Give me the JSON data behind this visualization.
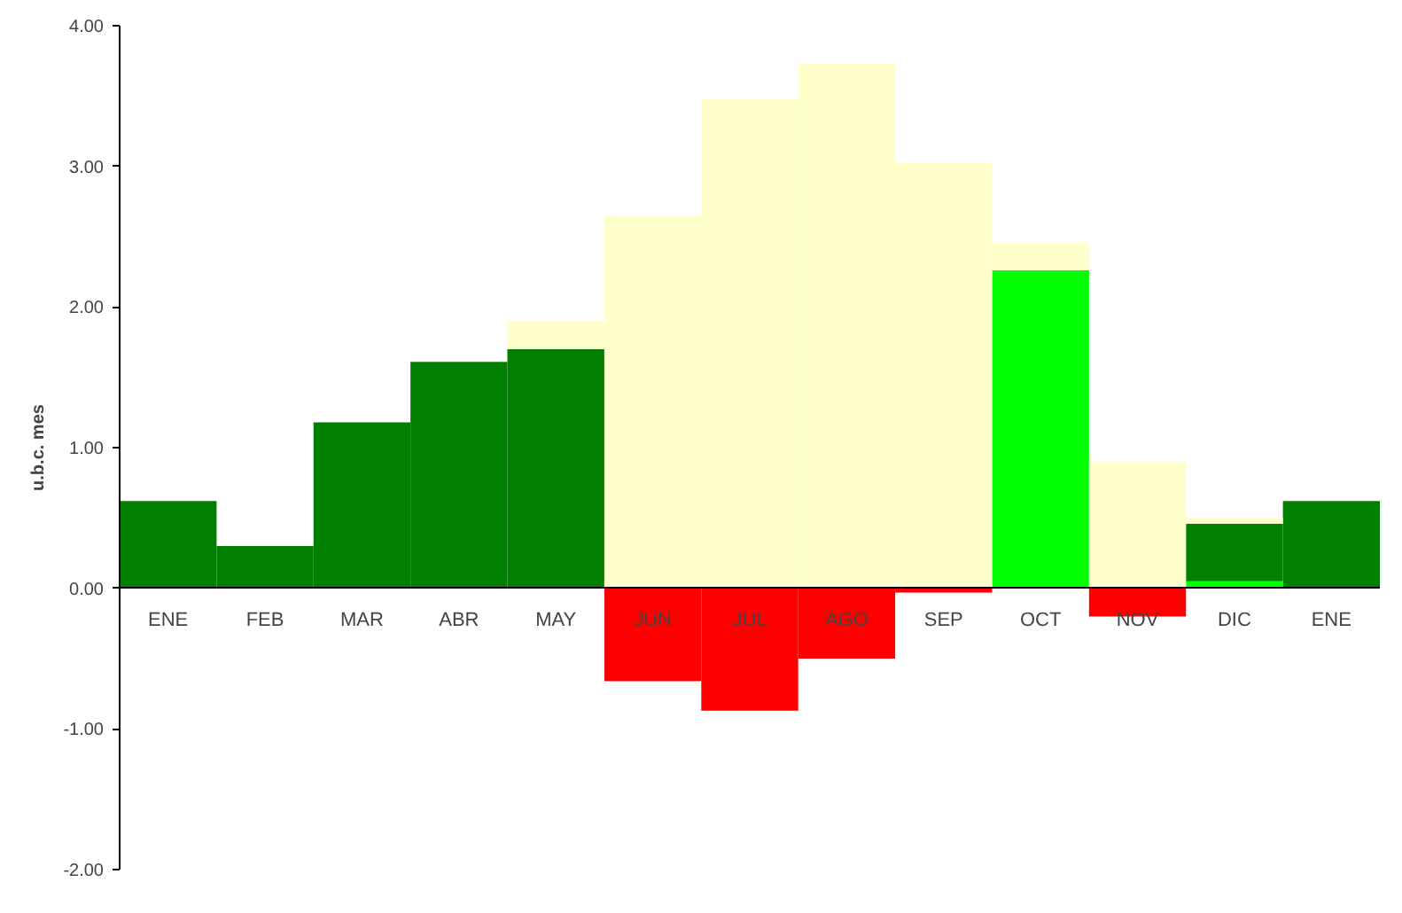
{
  "chart_data": {
    "type": "bar",
    "stacked": true,
    "ylabel": "u.b.c. mes",
    "categories": [
      "ENE",
      "FEB",
      "MAR",
      "ABR",
      "MAY",
      "JUN",
      "JUL",
      "AGO",
      "SEP",
      "OCT",
      "NOV",
      "DIC",
      "ENE"
    ],
    "series": [
      {
        "color": "#00ff00",
        "values": [
          null,
          null,
          null,
          null,
          null,
          null,
          null,
          null,
          null,
          2.26,
          null,
          0.05,
          null
        ]
      },
      {
        "color": "#007f00",
        "values": [
          0.62,
          0.3,
          1.18,
          1.61,
          1.7,
          null,
          null,
          null,
          null,
          null,
          null,
          0.41,
          0.62
        ]
      },
      {
        "color": "#ffffcc",
        "values": [
          null,
          null,
          null,
          null,
          0.2,
          2.65,
          3.48,
          3.73,
          3.03,
          0.2,
          0.9,
          0.04,
          null
        ]
      },
      {
        "color": "#ff0000",
        "values": [
          null,
          null,
          null,
          null,
          null,
          -0.66,
          -0.87,
          -0.5,
          -0.03,
          null,
          -0.2,
          null,
          null
        ]
      }
    ],
    "ylim": [
      -2,
      4
    ],
    "yticks": [
      {
        "value": -2,
        "label": "-2.00"
      },
      {
        "value": -1,
        "label": "-1.00"
      },
      {
        "value": 0,
        "label": "0.00"
      },
      {
        "value": 1,
        "label": "1.00"
      },
      {
        "value": 2,
        "label": "2.00"
      },
      {
        "value": 3,
        "label": "3.00"
      },
      {
        "value": 4,
        "label": "4.00"
      }
    ],
    "grid": false
  }
}
